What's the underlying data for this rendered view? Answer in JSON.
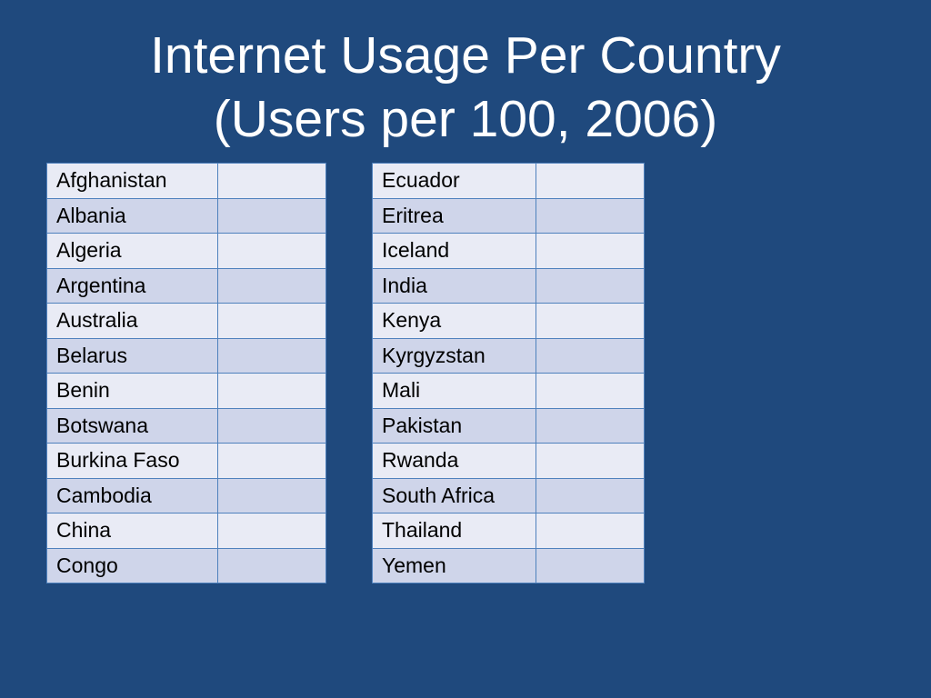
{
  "title": {
    "line1": "Internet Usage Per Country",
    "line2": "(Users per 100,  2006)"
  },
  "left_table": {
    "rows": [
      {
        "country": "Afghanistan",
        "value": ""
      },
      {
        "country": "Albania",
        "value": ""
      },
      {
        "country": "Algeria",
        "value": ""
      },
      {
        "country": "Argentina",
        "value": ""
      },
      {
        "country": "Australia",
        "value": ""
      },
      {
        "country": "Belarus",
        "value": ""
      },
      {
        "country": "Benin",
        "value": ""
      },
      {
        "country": "Botswana",
        "value": ""
      },
      {
        "country": "Burkina Faso",
        "value": ""
      },
      {
        "country": "Cambodia",
        "value": ""
      },
      {
        "country": "China",
        "value": ""
      },
      {
        "country": "Congo",
        "value": ""
      }
    ]
  },
  "right_table": {
    "rows": [
      {
        "country": "Ecuador",
        "value": ""
      },
      {
        "country": "Eritrea",
        "value": ""
      },
      {
        "country": "Iceland",
        "value": ""
      },
      {
        "country": "India",
        "value": ""
      },
      {
        "country": "Kenya",
        "value": ""
      },
      {
        "country": "Kyrgyzstan",
        "value": ""
      },
      {
        "country": "Mali",
        "value": ""
      },
      {
        "country": "Pakistan",
        "value": ""
      },
      {
        "country": "Rwanda",
        "value": ""
      },
      {
        "country": "South Africa",
        "value": ""
      },
      {
        "country": "Thailand",
        "value": ""
      },
      {
        "country": "Yemen",
        "value": ""
      }
    ]
  },
  "colors": {
    "background": "#1f497d",
    "title_text": "#ffffff",
    "row_light": "#e9ebf5",
    "row_dark": "#cfd5ea",
    "border": "#4f81bd"
  }
}
